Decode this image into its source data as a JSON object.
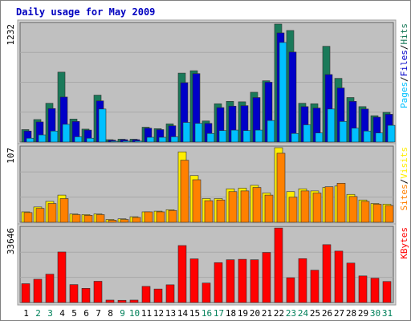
{
  "chart_data": {
    "type": "bar",
    "title": "Daily usage for May 2009",
    "categories": [
      "1",
      "2",
      "3",
      "4",
      "5",
      "6",
      "7",
      "8",
      "9",
      "10",
      "11",
      "12",
      "13",
      "14",
      "15",
      "16",
      "17",
      "18",
      "19",
      "20",
      "21",
      "22",
      "23",
      "24",
      "25",
      "26",
      "27",
      "28",
      "29",
      "30",
      "31"
    ],
    "weekend_days": [
      "2",
      "3",
      "9",
      "10",
      "16",
      "17",
      "23",
      "24",
      "30",
      "31"
    ],
    "panels": [
      {
        "id": "top",
        "max_label": "1232",
        "ymax": 1232,
        "legend": [
          {
            "text": "Pages",
            "color": "#00c0ff"
          },
          {
            "text": "Files",
            "color": "#0000c8"
          },
          {
            "text": "Hits",
            "color": "#1a7a5a"
          }
        ],
        "series": [
          {
            "name": "Hits",
            "color": "#1a7a5a",
            "values": [
              130,
              235,
              405,
              730,
              240,
              135,
              490,
              25,
              30,
              30,
              155,
              140,
              190,
              720,
              745,
              220,
              400,
              425,
              420,
              520,
              640,
              1232,
              1165,
              405,
              400,
              1000,
              665,
              465,
              370,
              275,
              310
            ]
          },
          {
            "name": "Files",
            "color": "#0000c8",
            "values": [
              115,
              210,
              350,
              470,
              215,
              125,
              430,
              20,
              25,
              25,
              145,
              130,
              170,
              620,
              715,
              195,
              360,
              375,
              380,
              465,
              625,
              1140,
              940,
              370,
              355,
              705,
              565,
              425,
              345,
              260,
              290
            ]
          },
          {
            "name": "Pages",
            "color": "#00c0ff",
            "values": [
              40,
              75,
              115,
              185,
              55,
              40,
              345,
              5,
              10,
              10,
              50,
              50,
              55,
              205,
              195,
              90,
              120,
              125,
              120,
              125,
              225,
              1040,
              90,
              180,
              95,
              345,
              215,
              145,
              115,
              95,
              175
            ]
          }
        ]
      },
      {
        "id": "middle",
        "max_label": "107",
        "ymax": 107,
        "legend": [
          {
            "text": "Sites",
            "color": "#ff8000"
          },
          {
            "text": "Visits",
            "color": "#ffee00"
          }
        ],
        "series": [
          {
            "name": "Visits",
            "color": "#ffee00",
            "values": [
              15,
              22,
              30,
              39,
              12,
              11,
              12,
              4,
              5,
              8,
              15,
              16,
              18,
              101,
              67,
              34,
              34,
              48,
              49,
              53,
              42,
              107,
              44,
              48,
              45,
              50,
              52,
              40,
              32,
              27,
              26
            ]
          },
          {
            "name": "Sites",
            "color": "#ff8000",
            "values": [
              14,
              20,
              27,
              34,
              11,
              10,
              11,
              3,
              4,
              7,
              15,
              15,
              17,
              89,
              61,
              31,
              32,
              44,
              45,
              50,
              39,
              99,
              36,
              45,
              42,
              51,
              56,
              37,
              30,
              26,
              24
            ]
          }
        ]
      },
      {
        "id": "bottom",
        "max_label": "33646",
        "ymax": 33646,
        "legend": [
          {
            "text": "KBytes",
            "color": "#ff0000"
          }
        ],
        "series": [
          {
            "name": "KBytes",
            "color": "#ff0000",
            "values": [
              8500,
              10500,
              12800,
              22800,
              8100,
              6400,
              9600,
              1100,
              1000,
              1100,
              7300,
              6100,
              8000,
              25700,
              19700,
              8800,
              18000,
              19300,
              19500,
              19300,
              22600,
              33600,
              11200,
              19800,
              14600,
              26100,
              23200,
              17800,
              12000,
              11000,
              9500
            ]
          }
        ]
      }
    ],
    "grid": true,
    "ylabel": "",
    "xlabel": ""
  }
}
